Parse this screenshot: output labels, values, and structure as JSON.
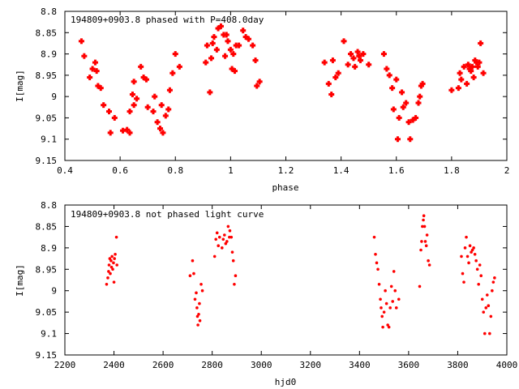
{
  "chart_data": [
    {
      "type": "scatter",
      "title": "194809+0903.8 phased with P=408.0day",
      "xlabel": "phase",
      "ylabel": "I[mag]",
      "xlim": [
        0.4,
        2.0
      ],
      "ylim": [
        9.15,
        8.8
      ],
      "y_inverted": true,
      "grid": false,
      "marker_color": "#ff0000",
      "marker": "plus-bold",
      "x_ticks": [
        "0.4",
        "0.6",
        "0.8",
        "1",
        "1.2",
        "1.4",
        "1.6",
        "1.8",
        "2"
      ],
      "y_ticks": [
        "8.8",
        "8.85",
        "8.9",
        "8.95",
        "9",
        "9.05",
        "9.1",
        "9.15"
      ],
      "points": [
        [
          0.46,
          8.87
        ],
        [
          0.47,
          8.905
        ],
        [
          0.49,
          8.955
        ],
        [
          0.5,
          8.935
        ],
        [
          0.51,
          8.92
        ],
        [
          0.515,
          8.94
        ],
        [
          0.52,
          8.975
        ],
        [
          0.53,
          8.98
        ],
        [
          0.54,
          9.02
        ],
        [
          0.56,
          9.035
        ],
        [
          0.565,
          9.085
        ],
        [
          0.58,
          9.05
        ],
        [
          0.61,
          9.08
        ],
        [
          0.625,
          9.078
        ],
        [
          0.635,
          9.085
        ],
        [
          0.635,
          9.035
        ],
        [
          0.645,
          8.995
        ],
        [
          0.65,
          9.02
        ],
        [
          0.65,
          8.965
        ],
        [
          0.66,
          9.005
        ],
        [
          0.675,
          8.93
        ],
        [
          0.685,
          8.955
        ],
        [
          0.695,
          8.96
        ],
        [
          0.7,
          9.025
        ],
        [
          0.72,
          9.035
        ],
        [
          0.725,
          9.0
        ],
        [
          0.735,
          9.06
        ],
        [
          0.745,
          9.075
        ],
        [
          0.75,
          9.02
        ],
        [
          0.755,
          9.085
        ],
        [
          0.765,
          9.045
        ],
        [
          0.775,
          9.03
        ],
        [
          0.78,
          8.985
        ],
        [
          0.79,
          8.945
        ],
        [
          0.8,
          8.9
        ],
        [
          0.815,
          8.93
        ],
        [
          0.91,
          8.92
        ],
        [
          0.915,
          8.88
        ],
        [
          0.93,
          8.91
        ],
        [
          0.935,
          8.875
        ],
        [
          0.94,
          8.86
        ],
        [
          0.95,
          8.89
        ],
        [
          0.955,
          8.84
        ],
        [
          0.965,
          8.835
        ],
        [
          0.975,
          8.855
        ],
        [
          0.98,
          8.905
        ],
        [
          0.99,
          8.87
        ],
        [
          1.0,
          8.89
        ],
        [
          1.005,
          8.935
        ],
        [
          1.01,
          8.9
        ],
        [
          1.02,
          8.88
        ],
        [
          1.03,
          8.88
        ],
        [
          1.045,
          8.845
        ],
        [
          1.055,
          8.86
        ],
        [
          1.065,
          8.865
        ],
        [
          1.08,
          8.88
        ],
        [
          1.09,
          8.915
        ],
        [
          1.095,
          8.975
        ],
        [
          1.105,
          8.965
        ],
        [
          0.925,
          8.99
        ],
        [
          0.985,
          8.855
        ],
        [
          1.015,
          8.94
        ],
        [
          1.34,
          8.92
        ],
        [
          1.355,
          8.97
        ],
        [
          1.365,
          8.995
        ],
        [
          1.37,
          8.915
        ],
        [
          1.38,
          8.955
        ],
        [
          1.39,
          8.945
        ],
        [
          1.41,
          8.87
        ],
        [
          1.425,
          8.925
        ],
        [
          1.435,
          8.9
        ],
        [
          1.445,
          8.91
        ],
        [
          1.45,
          8.93
        ],
        [
          1.46,
          8.895
        ],
        [
          1.465,
          8.905
        ],
        [
          1.47,
          8.915
        ],
        [
          1.48,
          8.9
        ],
        [
          1.5,
          8.925
        ],
        [
          1.555,
          8.9
        ],
        [
          1.565,
          8.935
        ],
        [
          1.575,
          8.95
        ],
        [
          1.585,
          8.98
        ],
        [
          1.59,
          9.03
        ],
        [
          1.6,
          8.96
        ],
        [
          1.605,
          9.1
        ],
        [
          1.61,
          9.05
        ],
        [
          1.62,
          8.99
        ],
        [
          1.625,
          9.025
        ],
        [
          1.635,
          9.015
        ],
        [
          1.645,
          9.06
        ],
        [
          1.65,
          9.1
        ],
        [
          1.66,
          9.055
        ],
        [
          1.67,
          9.05
        ],
        [
          1.68,
          9.015
        ],
        [
          1.685,
          9.0
        ],
        [
          1.69,
          8.975
        ],
        [
          1.695,
          8.97
        ],
        [
          1.8,
          8.985
        ],
        [
          1.825,
          8.98
        ],
        [
          1.83,
          8.945
        ],
        [
          1.835,
          8.96
        ],
        [
          1.845,
          8.93
        ],
        [
          1.855,
          8.97
        ],
        [
          1.86,
          8.925
        ],
        [
          1.865,
          8.935
        ],
        [
          1.87,
          8.94
        ],
        [
          1.875,
          8.93
        ],
        [
          1.88,
          8.955
        ],
        [
          1.885,
          8.915
        ],
        [
          1.89,
          8.92
        ],
        [
          1.895,
          8.93
        ],
        [
          1.9,
          8.92
        ],
        [
          1.905,
          8.875
        ],
        [
          1.915,
          8.945
        ]
      ]
    },
    {
      "type": "scatter",
      "title": "194809+0903.8 not phased light curve",
      "xlabel": "hjd0",
      "ylabel": "I[mag]",
      "xlim": [
        2200,
        4000
      ],
      "ylim": [
        9.15,
        8.8
      ],
      "y_inverted": true,
      "grid": false,
      "marker_color": "#ff0000",
      "marker": "dot",
      "x_ticks": [
        "2200",
        "2400",
        "2600",
        "2800",
        "3000",
        "3200",
        "3400",
        "3600",
        "3800",
        "4000"
      ],
      "y_ticks": [
        "8.8",
        "8.85",
        "8.9",
        "8.95",
        "9",
        "9.05",
        "9.1",
        "9.15"
      ],
      "points": [
        [
          2370,
          8.985
        ],
        [
          2375,
          8.97
        ],
        [
          2378,
          8.955
        ],
        [
          2380,
          8.94
        ],
        [
          2383,
          8.925
        ],
        [
          2385,
          8.96
        ],
        [
          2388,
          8.93
        ],
        [
          2390,
          8.945
        ],
        [
          2392,
          8.92
        ],
        [
          2395,
          8.95
        ],
        [
          2398,
          8.935
        ],
        [
          2400,
          8.98
        ],
        [
          2402,
          8.925
        ],
        [
          2405,
          8.915
        ],
        [
          2410,
          8.875
        ],
        [
          2412,
          8.94
        ],
        [
          2710,
          8.965
        ],
        [
          2720,
          8.93
        ],
        [
          2725,
          8.96
        ],
        [
          2730,
          9.02
        ],
        [
          2735,
          9.005
        ],
        [
          2738,
          9.04
        ],
        [
          2740,
          9.06
        ],
        [
          2742,
          9.08
        ],
        [
          2745,
          9.055
        ],
        [
          2748,
          9.03
        ],
        [
          2750,
          9.07
        ],
        [
          2755,
          8.985
        ],
        [
          2760,
          9.0
        ],
        [
          2810,
          8.92
        ],
        [
          2815,
          8.88
        ],
        [
          2820,
          8.865
        ],
        [
          2825,
          8.895
        ],
        [
          2830,
          8.875
        ],
        [
          2840,
          8.9
        ],
        [
          2845,
          8.88
        ],
        [
          2850,
          8.87
        ],
        [
          2855,
          8.89
        ],
        [
          2860,
          8.885
        ],
        [
          2865,
          8.85
        ],
        [
          2870,
          8.875
        ],
        [
          2872,
          8.86
        ],
        [
          2878,
          8.875
        ],
        [
          2882,
          8.91
        ],
        [
          2886,
          8.93
        ],
        [
          2890,
          8.985
        ],
        [
          2895,
          8.965
        ],
        [
          3460,
          8.875
        ],
        [
          3465,
          8.915
        ],
        [
          3470,
          8.935
        ],
        [
          3475,
          8.95
        ],
        [
          3480,
          8.985
        ],
        [
          3485,
          9.02
        ],
        [
          3488,
          9.04
        ],
        [
          3492,
          9.06
        ],
        [
          3495,
          9.085
        ],
        [
          3500,
          9.05
        ],
        [
          3505,
          9.0
        ],
        [
          3510,
          9.03
        ],
        [
          3515,
          9.08
        ],
        [
          3520,
          9.085
        ],
        [
          3525,
          9.04
        ],
        [
          3530,
          8.99
        ],
        [
          3535,
          9.025
        ],
        [
          3540,
          8.955
        ],
        [
          3545,
          9.0
        ],
        [
          3550,
          9.04
        ],
        [
          3560,
          9.02
        ],
        [
          3645,
          8.99
        ],
        [
          3650,
          8.905
        ],
        [
          3653,
          8.885
        ],
        [
          3656,
          8.85
        ],
        [
          3660,
          8.835
        ],
        [
          3662,
          8.825
        ],
        [
          3665,
          8.85
        ],
        [
          3668,
          8.885
        ],
        [
          3672,
          8.895
        ],
        [
          3675,
          8.87
        ],
        [
          3680,
          8.93
        ],
        [
          3685,
          8.94
        ],
        [
          3815,
          8.92
        ],
        [
          3820,
          8.96
        ],
        [
          3825,
          8.98
        ],
        [
          3830,
          8.9
        ],
        [
          3835,
          8.875
        ],
        [
          3840,
          8.92
        ],
        [
          3845,
          8.935
        ],
        [
          3850,
          8.895
        ],
        [
          3855,
          8.91
        ],
        [
          3860,
          8.905
        ],
        [
          3865,
          8.9
        ],
        [
          3870,
          8.915
        ],
        [
          3875,
          8.93
        ],
        [
          3880,
          8.95
        ],
        [
          3885,
          8.985
        ],
        [
          3890,
          8.94
        ],
        [
          3895,
          8.965
        ],
        [
          3900,
          9.02
        ],
        [
          3905,
          9.05
        ],
        [
          3910,
          9.1
        ],
        [
          3915,
          9.04
        ],
        [
          3920,
          9.01
        ],
        [
          3925,
          9.035
        ],
        [
          3930,
          9.1
        ],
        [
          3935,
          9.06
        ],
        [
          3940,
          9.0
        ],
        [
          3945,
          8.98
        ],
        [
          3950,
          8.97
        ]
      ]
    }
  ]
}
